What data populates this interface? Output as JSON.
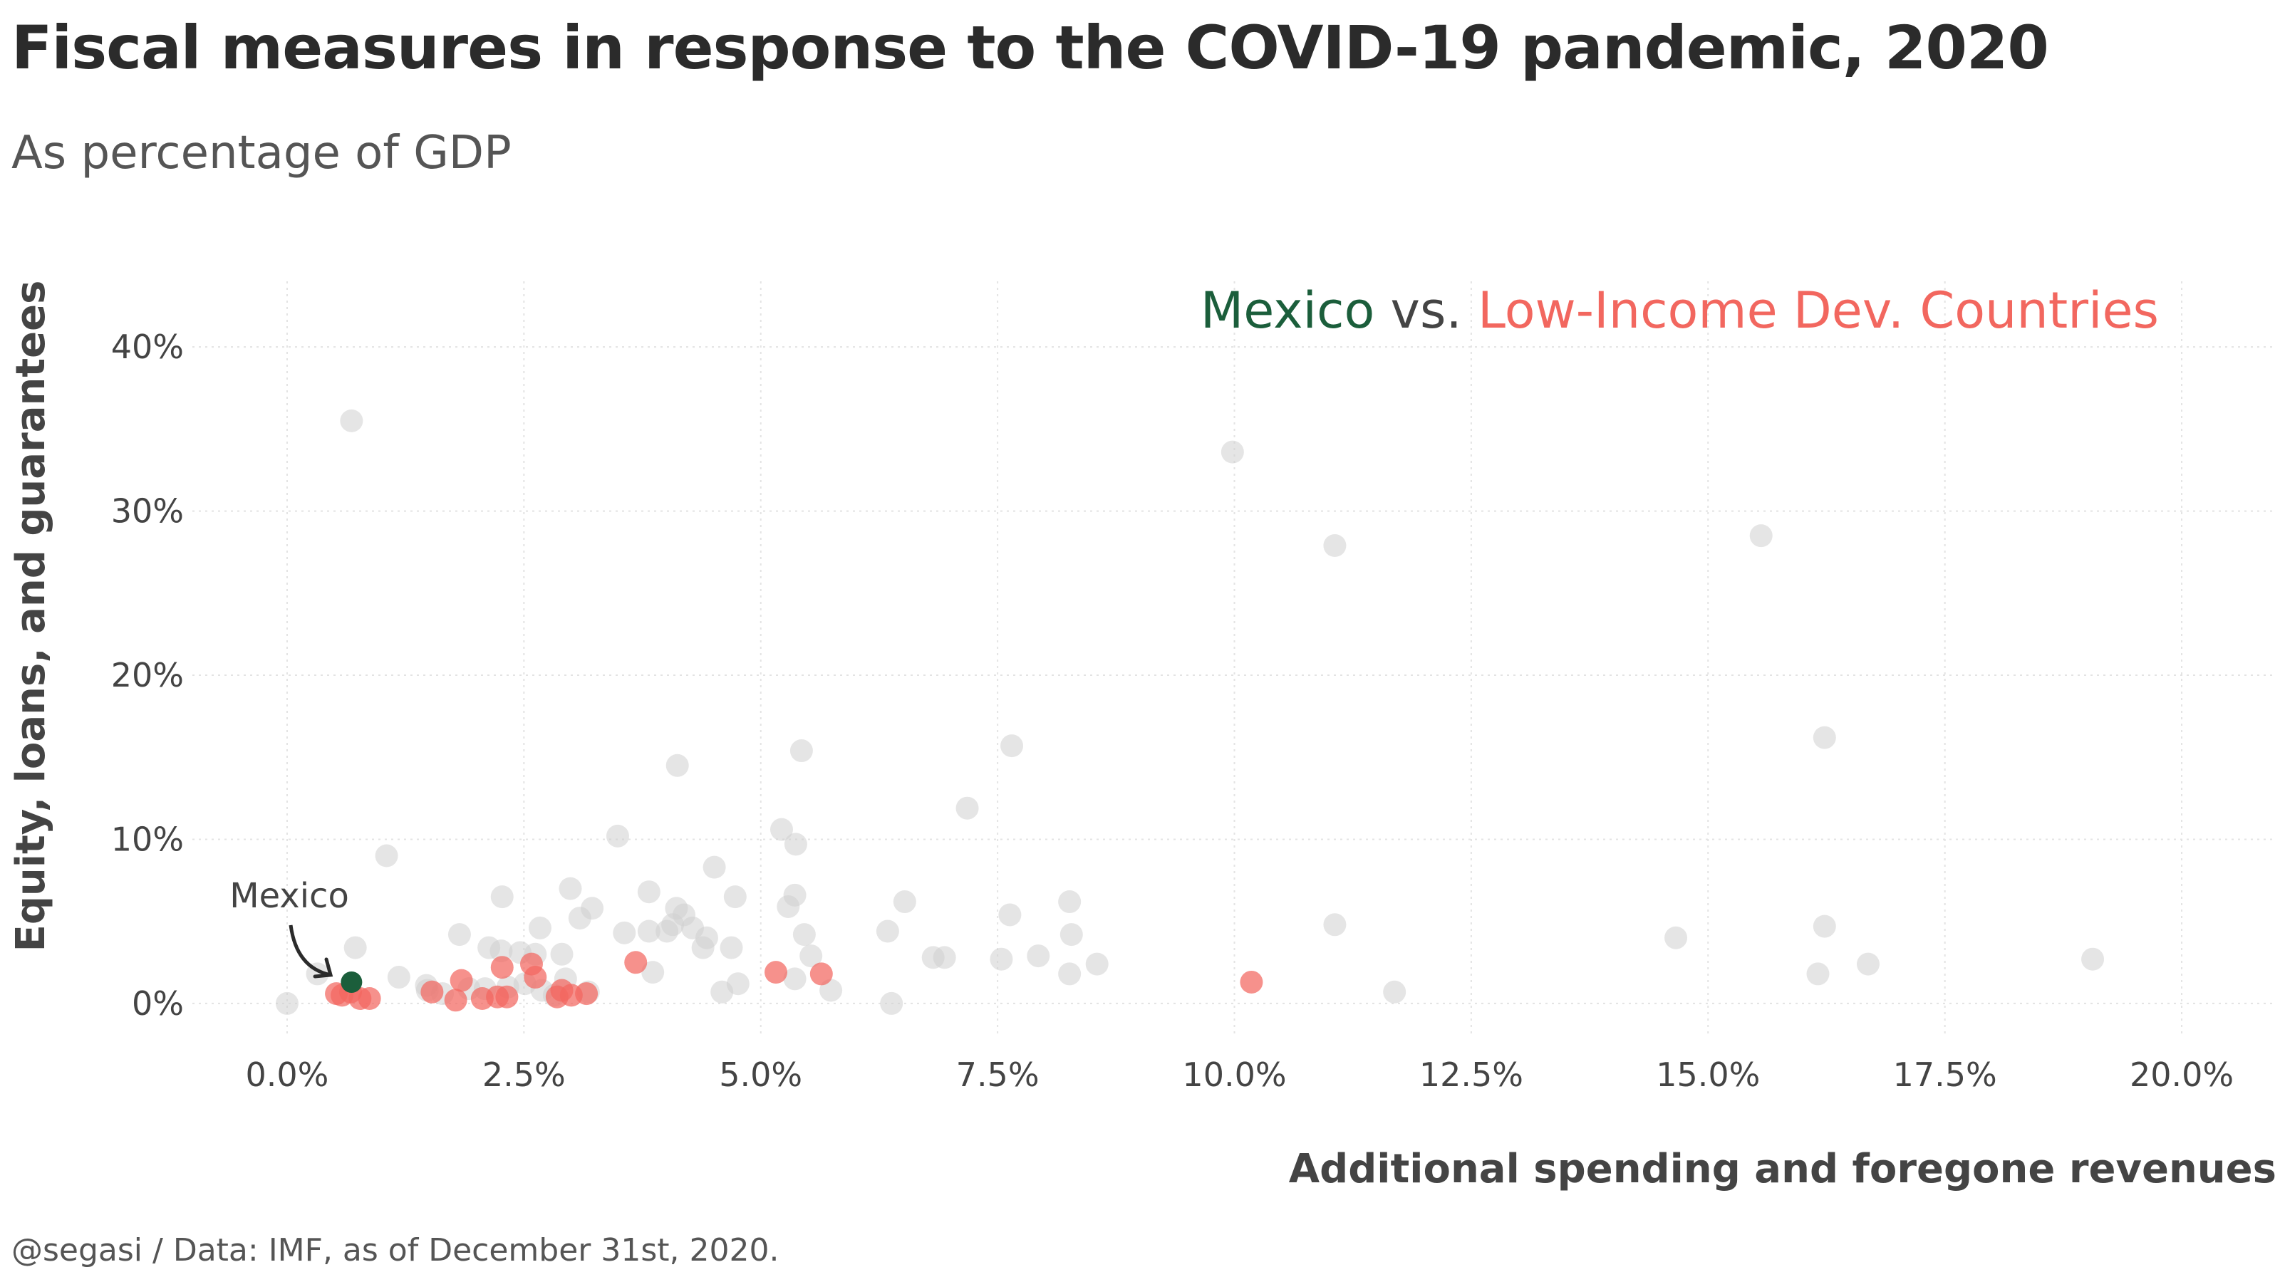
{
  "title": "Fiscal measures in response to the COVID-19 pandemic, 2020",
  "subtitle": "As percentage of GDP",
  "caption": "@segasi / Data: IMF, as of December 31st, 2020.",
  "colors": {
    "mexico": "#1b5e3b",
    "low_income": "#f2675f",
    "others": "#cfcfcf",
    "text": "#444444"
  },
  "chart_data": {
    "type": "scatter",
    "xlabel": "Additional spending and foregone revenues",
    "ylabel": "Equity, loans, and guarantees",
    "xlim": [
      -0.01,
      0.21
    ],
    "ylim": [
      -0.02,
      0.44
    ],
    "x_ticks": [
      {
        "value": 0.0,
        "label": "0.0%"
      },
      {
        "value": 0.025,
        "label": "2.5%"
      },
      {
        "value": 0.05,
        "label": "5.0%"
      },
      {
        "value": 0.075,
        "label": "7.5%"
      },
      {
        "value": 0.1,
        "label": "10.0%"
      },
      {
        "value": 0.125,
        "label": "12.5%"
      },
      {
        "value": 0.15,
        "label": "15.0%"
      },
      {
        "value": 0.175,
        "label": "17.5%"
      },
      {
        "value": 0.2,
        "label": "20.0%"
      }
    ],
    "y_ticks": [
      {
        "value": 0.0,
        "label": "0%"
      },
      {
        "value": 0.1,
        "label": "10%"
      },
      {
        "value": 0.2,
        "label": "20%"
      },
      {
        "value": 0.3,
        "label": "30%"
      },
      {
        "value": 0.4,
        "label": "40%"
      }
    ],
    "grid": true,
    "legend": {
      "position": "top-right",
      "items": [
        {
          "text": "Mexico",
          "color": "#1b5e3b"
        },
        {
          "text": " vs. ",
          "color": "#444444"
        },
        {
          "text": "Low-Income Dev. Countries",
          "color": "#f2675f"
        }
      ]
    },
    "annotation": {
      "text": "Mexico",
      "x": 0.007,
      "y": 0.013
    },
    "series": [
      {
        "group": "others",
        "points": [
          [
            0.0,
            0.0
          ],
          [
            0.0068,
            0.355
          ],
          [
            0.0998,
            0.336
          ],
          [
            0.1106,
            0.279
          ],
          [
            0.1556,
            0.285
          ],
          [
            0.1623,
            0.162
          ],
          [
            0.0765,
            0.157
          ],
          [
            0.0543,
            0.154
          ],
          [
            0.0412,
            0.145
          ],
          [
            0.0718,
            0.119
          ],
          [
            0.0522,
            0.106
          ],
          [
            0.0537,
            0.097
          ],
          [
            0.0349,
            0.102
          ],
          [
            0.0105,
            0.09
          ],
          [
            0.0451,
            0.083
          ],
          [
            0.0382,
            0.068
          ],
          [
            0.0299,
            0.07
          ],
          [
            0.0227,
            0.065
          ],
          [
            0.0473,
            0.065
          ],
          [
            0.0536,
            0.066
          ],
          [
            0.0652,
            0.062
          ],
          [
            0.0826,
            0.062
          ],
          [
            0.0529,
            0.059
          ],
          [
            0.0322,
            0.058
          ],
          [
            0.0309,
            0.052
          ],
          [
            0.0411,
            0.058
          ],
          [
            0.0419,
            0.054
          ],
          [
            0.0407,
            0.048
          ],
          [
            0.0428,
            0.046
          ],
          [
            0.0443,
            0.04
          ],
          [
            0.0439,
            0.034
          ],
          [
            0.0382,
            0.044
          ],
          [
            0.0356,
            0.043
          ],
          [
            0.0267,
            0.046
          ],
          [
            0.0401,
            0.044
          ],
          [
            0.0546,
            0.042
          ],
          [
            0.0634,
            0.044
          ],
          [
            0.0763,
            0.054
          ],
          [
            0.0828,
            0.042
          ],
          [
            0.1106,
            0.048
          ],
          [
            0.1623,
            0.047
          ],
          [
            0.1466,
            0.04
          ],
          [
            0.0182,
            0.042
          ],
          [
            0.0213,
            0.034
          ],
          [
            0.0226,
            0.032
          ],
          [
            0.0246,
            0.031
          ],
          [
            0.0262,
            0.03
          ],
          [
            0.029,
            0.03
          ],
          [
            0.0386,
            0.019
          ],
          [
            0.0469,
            0.034
          ],
          [
            0.0553,
            0.029
          ],
          [
            0.0682,
            0.028
          ],
          [
            0.0694,
            0.028
          ],
          [
            0.0754,
            0.027
          ],
          [
            0.0793,
            0.029
          ],
          [
            0.0855,
            0.024
          ],
          [
            0.0826,
            0.018
          ],
          [
            0.1669,
            0.024
          ],
          [
            0.1906,
            0.027
          ],
          [
            0.1616,
            0.018
          ],
          [
            0.1169,
            0.007
          ],
          [
            0.0574,
            0.008
          ],
          [
            0.0638,
            0.0
          ],
          [
            0.0476,
            0.012
          ],
          [
            0.0459,
            0.007
          ],
          [
            0.0536,
            0.015
          ],
          [
            0.0118,
            0.016
          ],
          [
            0.0147,
            0.011
          ],
          [
            0.0164,
            0.006
          ],
          [
            0.0072,
            0.034
          ],
          [
            0.0032,
            0.018
          ],
          [
            0.0192,
            0.009
          ],
          [
            0.0233,
            0.01
          ],
          [
            0.0282,
            0.005
          ],
          [
            0.0294,
            0.015
          ],
          [
            0.0251,
            0.012
          ],
          [
            0.0269,
            0.008
          ],
          [
            0.0318,
            0.007
          ],
          [
            0.0209,
            0.009
          ],
          [
            0.0148,
            0.008
          ]
        ]
      },
      {
        "group": "low_income",
        "points": [
          [
            0.0052,
            0.006
          ],
          [
            0.0058,
            0.005
          ],
          [
            0.0067,
            0.007
          ],
          [
            0.0077,
            0.003
          ],
          [
            0.0087,
            0.003
          ],
          [
            0.0153,
            0.007
          ],
          [
            0.0178,
            0.002
          ],
          [
            0.0184,
            0.014
          ],
          [
            0.0206,
            0.003
          ],
          [
            0.0222,
            0.004
          ],
          [
            0.0227,
            0.022
          ],
          [
            0.0232,
            0.004
          ],
          [
            0.0258,
            0.024
          ],
          [
            0.0262,
            0.016
          ],
          [
            0.0285,
            0.004
          ],
          [
            0.029,
            0.008
          ],
          [
            0.03,
            0.005
          ],
          [
            0.0316,
            0.006
          ],
          [
            0.0368,
            0.025
          ],
          [
            0.0516,
            0.019
          ],
          [
            0.0564,
            0.018
          ],
          [
            0.1018,
            0.013
          ]
        ]
      },
      {
        "group": "mexico",
        "points": [
          [
            0.0068,
            0.013
          ]
        ]
      }
    ]
  }
}
